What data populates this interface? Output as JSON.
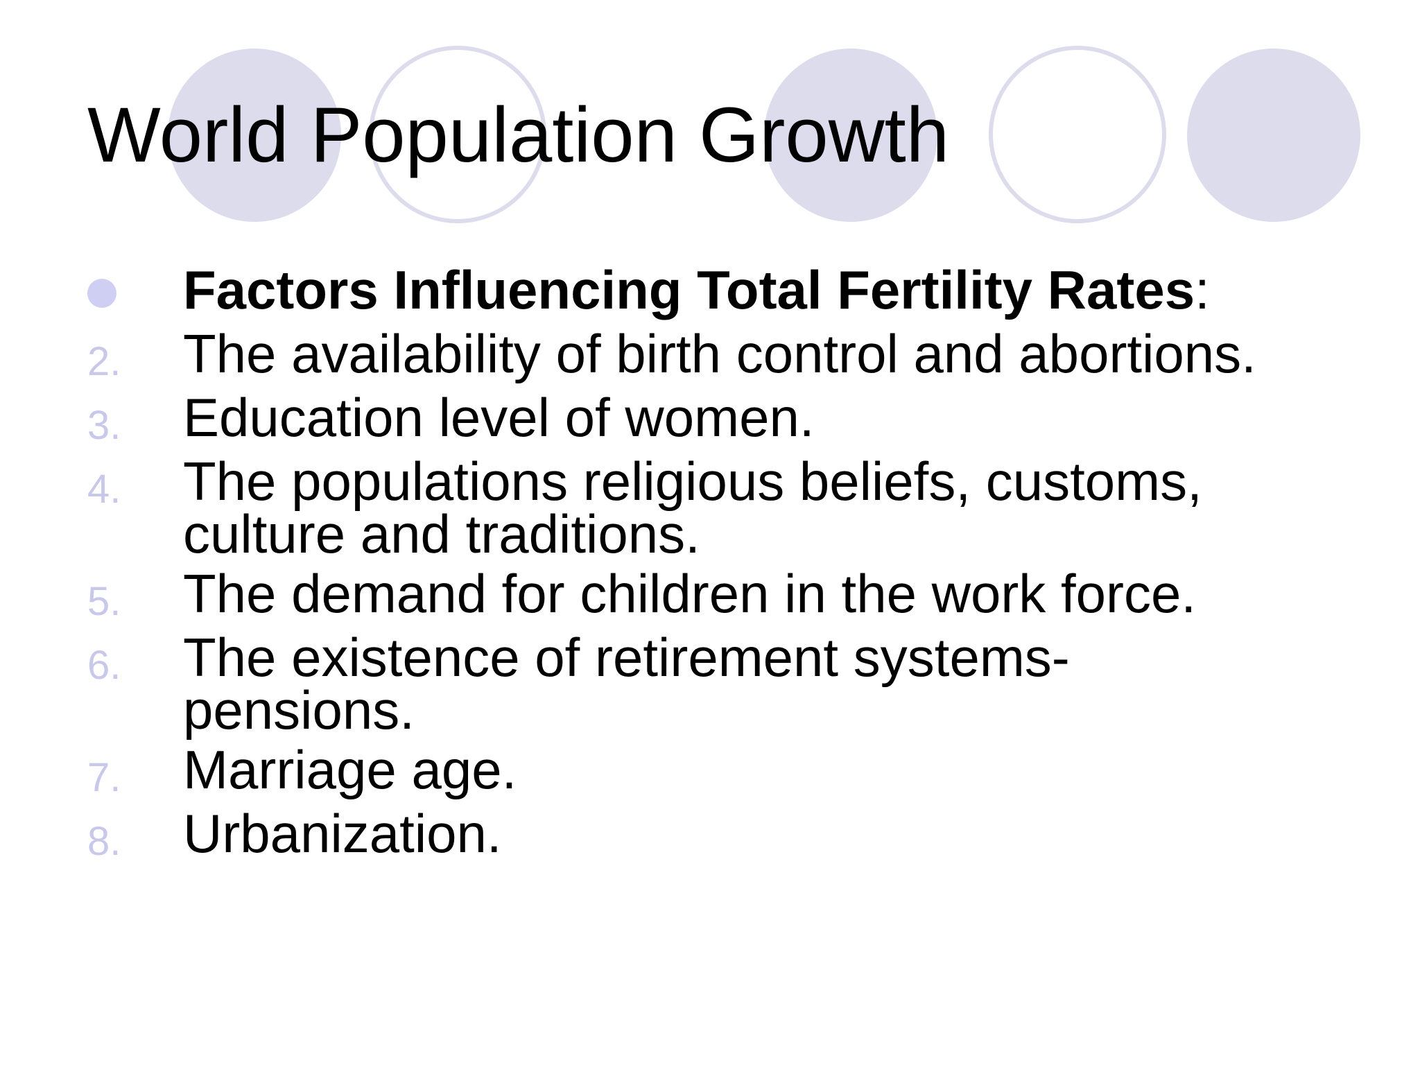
{
  "slide": {
    "title": "World Population Growth",
    "heading": {
      "bold": "Factors Influencing Total Fertility Rates",
      "suffix": ":"
    },
    "items": [
      {
        "number": "2.",
        "lines": [
          "The availability of birth control and abortions."
        ]
      },
      {
        "number": "3.",
        "lines": [
          "Education level of women."
        ]
      },
      {
        "number": "4.",
        "lines": [
          "The populations religious beliefs, customs,",
          "culture and traditions."
        ]
      },
      {
        "number": "5.",
        "lines": [
          "The demand for children in the work force."
        ]
      },
      {
        "number": "6.",
        "lines": [
          "The existence of retirement systems-",
          "pensions."
        ]
      },
      {
        "number": "7.",
        "lines": [
          "Marriage age."
        ]
      },
      {
        "number": "8.",
        "lines": [
          "Urbanization."
        ]
      }
    ]
  },
  "colors": {
    "circle": "#dcdcec",
    "marker": "#c8c8ea",
    "bullet": "#cfcff3",
    "text": "#000000"
  }
}
